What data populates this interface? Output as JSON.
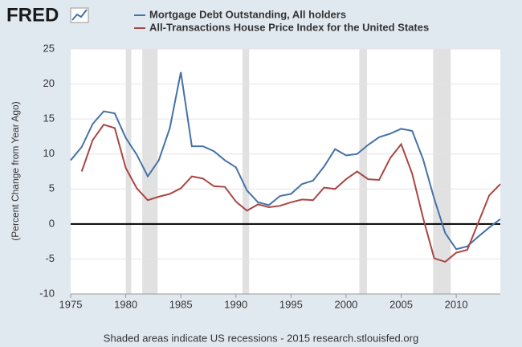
{
  "header": {
    "logo": "FRED"
  },
  "chart_data": {
    "type": "line",
    "legend": "top",
    "y_label": "(Percent Change from Year Ago)",
    "note": "Shaded areas indicate US recessions - 2015 research.stlouisfed.org",
    "x": [
      1975,
      1976,
      1977,
      1978,
      1979,
      1980,
      1981,
      1982,
      1983,
      1984,
      1985,
      1986,
      1987,
      1988,
      1989,
      1990,
      1991,
      1992,
      1993,
      1994,
      1995,
      1996,
      1997,
      1998,
      1999,
      2000,
      2001,
      2002,
      2003,
      2004,
      2005,
      2006,
      2007,
      2008,
      2009,
      2010,
      2011,
      2012,
      2013,
      2014
    ],
    "series": [
      {
        "name": "Mortgage Debt Outstanding, All holders",
        "color": "#4572a7",
        "values": [
          9.1,
          11.0,
          14.3,
          16.1,
          15.8,
          12.3,
          9.9,
          6.8,
          9.1,
          13.7,
          21.7,
          11.1,
          11.1,
          10.4,
          9.1,
          8.1,
          4.8,
          3.1,
          2.7,
          4.0,
          4.3,
          5.7,
          6.2,
          8.2,
          10.7,
          9.8,
          10.0,
          11.3,
          12.4,
          12.9,
          13.6,
          13.3,
          9.2,
          3.6,
          -1.3,
          -3.6,
          -3.2,
          -1.8,
          -0.5,
          0.7
        ]
      },
      {
        "name": "All-Transactions House Price Index for the United States",
        "color": "#aa4643",
        "values": [
          null,
          7.5,
          12.0,
          14.2,
          13.7,
          8.0,
          5.1,
          3.4,
          3.9,
          4.3,
          5.1,
          6.8,
          6.5,
          5.4,
          5.3,
          3.2,
          1.9,
          2.8,
          2.4,
          2.6,
          3.1,
          3.5,
          3.4,
          5.2,
          5.0,
          6.4,
          7.5,
          6.4,
          6.3,
          9.4,
          11.4,
          7.2,
          0.8,
          -4.9,
          -5.4,
          -4.1,
          -3.7,
          0.2,
          4.1,
          5.7
        ]
      }
    ],
    "recessions": [
      [
        1980.0,
        1980.5
      ],
      [
        1981.5,
        1982.9
      ],
      [
        1990.6,
        1991.2
      ],
      [
        2001.2,
        2001.9
      ],
      [
        2007.9,
        2009.5
      ]
    ],
    "xlim": [
      1975,
      2014
    ],
    "xticks": [
      1975,
      1980,
      1985,
      1990,
      1995,
      2000,
      2005,
      2010
    ],
    "ylim": [
      -10,
      25
    ],
    "yticks": [
      -10,
      -5,
      0,
      5,
      10,
      15,
      20,
      25
    ],
    "grid": true
  }
}
